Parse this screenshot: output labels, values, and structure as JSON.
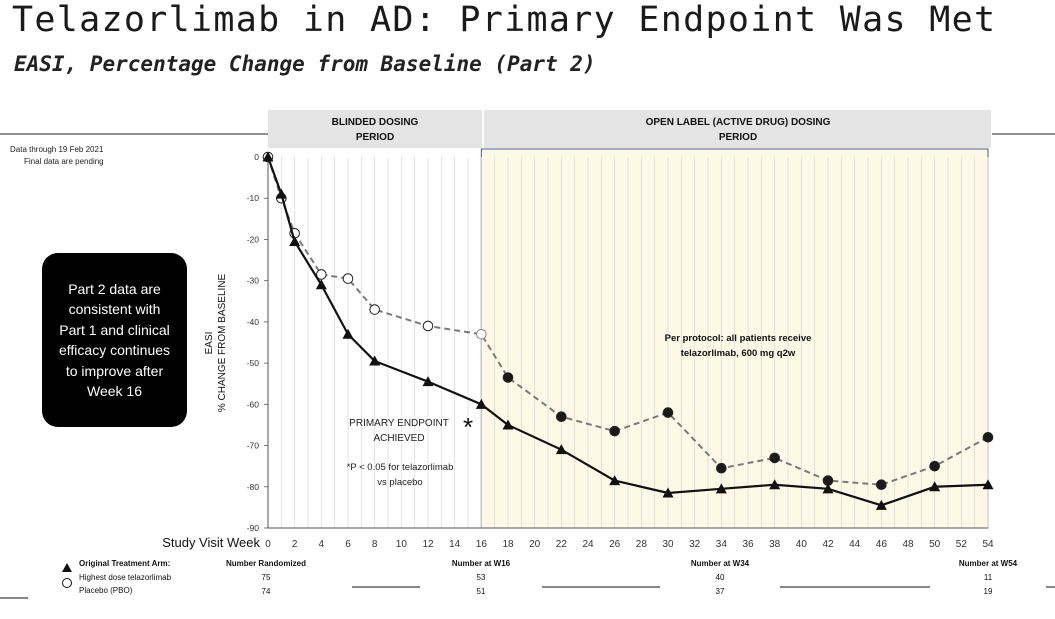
{
  "slide": {
    "title": "Telazorlimab in AD: Primary Endpoint Was Met",
    "subtitle": "EASI, Percentage Change from Baseline (Part 2)"
  },
  "footnote": {
    "line1": "Data through 19 Feb 2021",
    "line2": "Final data are pending"
  },
  "callout": {
    "text": "Part 2 data are consistent with Part 1 and clinical efficacy continues to improve after Week 16"
  },
  "chart_data": {
    "type": "line",
    "ylabel_line1": "EASI",
    "ylabel_line2": "% CHANGE FROM BASELINE",
    "xlabel": "Study Visit Week",
    "xlim": [
      0,
      54
    ],
    "ylim": [
      -90,
      0
    ],
    "yticks": [
      "0",
      "-10",
      "-20",
      "-30",
      "-40",
      "-50",
      "-60",
      "-70",
      "-80",
      "-90"
    ],
    "xticks": [
      "0",
      "2",
      "4",
      "6",
      "8",
      "10",
      "12",
      "14",
      "16",
      "18",
      "20",
      "22",
      "24",
      "26",
      "28",
      "30",
      "32",
      "34",
      "36",
      "38",
      "40",
      "42",
      "44",
      "46",
      "48",
      "50",
      "52",
      "54"
    ],
    "grid": "vertical",
    "periods": [
      {
        "label": "BLINDED DOSING PERIOD"
      },
      {
        "label": "OPEN LABEL (ACTIVE DRUG) DOSING PERIOD"
      }
    ],
    "series": [
      {
        "name": "Highest dose telazorlimab",
        "marker": "triangle",
        "color": "#111111",
        "x": [
          0,
          1,
          2,
          4,
          6,
          8,
          12,
          16,
          18,
          22,
          26,
          30,
          34,
          38,
          42,
          46,
          50,
          54
        ],
        "y": [
          0,
          -9,
          -20.5,
          -31,
          -43,
          -49.5,
          -54.5,
          -60,
          -65,
          -71,
          -78.5,
          -81.5,
          -80.5,
          -79.5,
          -80.5,
          -84.5,
          -80,
          -79.5
        ]
      },
      {
        "name": "Placebo (PBO)",
        "marker": "circle",
        "color": "#777777",
        "x": [
          0,
          1,
          2,
          4,
          6,
          8,
          12,
          16,
          18,
          22,
          26,
          30,
          34,
          38,
          42,
          46,
          50,
          54
        ],
        "y": [
          0,
          -10,
          -18.5,
          -28.5,
          -29.5,
          -37,
          -41,
          -43,
          -53.5,
          -63,
          -66.5,
          -62,
          -75.5,
          -73,
          -78.5,
          -79.5,
          -75,
          -68
        ]
      }
    ],
    "annotations": {
      "asterisk": "*",
      "endpoint_line1": "PRIMARY ENDPOINT",
      "endpoint_line2": "ACHIEVED",
      "pvalue_line1": "*P < 0.05 for telazorlimab",
      "pvalue_line2": "vs placebo",
      "protocol_line1": "Per protocol: all patients receive",
      "protocol_line2": "telazorlimab, 600 mg q2w"
    },
    "table": {
      "legend_header": "Original Treatment Arm:",
      "columns": [
        "Number Randomized",
        "Number at W16",
        "Number at W34",
        "Number at W54"
      ],
      "rows": [
        {
          "label": "Highest dose telazorlimab",
          "values": [
            "75",
            "53",
            "40",
            "11"
          ]
        },
        {
          "label": "Placebo (PBO)",
          "values": [
            "74",
            "51",
            "37",
            "19"
          ]
        }
      ]
    }
  }
}
